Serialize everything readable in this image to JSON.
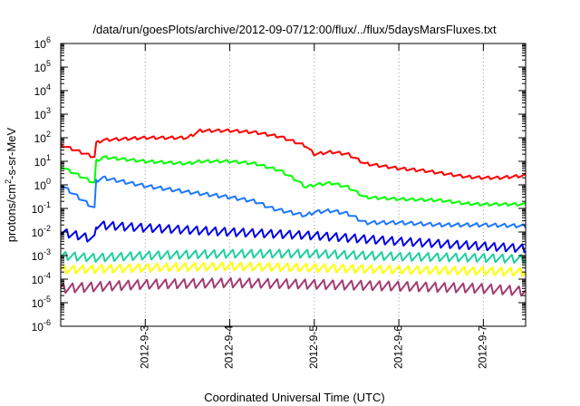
{
  "chart_data": {
    "type": "line",
    "title": "/data/run/goesPlots/archive/2012-09-07/12:00/flux/../flux/5daysMarsFluxes.txt",
    "xlabel": "Coordinated Universal Time (UTC)",
    "ylabel": {
      "prefix": "protons/cm",
      "sup": "2",
      "suffix": "-s-sr-MeV"
    },
    "yscale": "log",
    "ylim": [
      1e-06,
      1000000.0
    ],
    "xlim": [
      0,
      5.5
    ],
    "grid": true,
    "y_ticks": [
      {
        "value": -6,
        "base": "10",
        "exp": "-6"
      },
      {
        "value": -5,
        "base": "10",
        "exp": "-5"
      },
      {
        "value": -4,
        "base": "10",
        "exp": "-4"
      },
      {
        "value": -3,
        "base": "10",
        "exp": "-3"
      },
      {
        "value": -2,
        "base": "10",
        "exp": "-2"
      },
      {
        "value": -1,
        "base": "10",
        "exp": "-1"
      },
      {
        "value": 0,
        "base": "10",
        "exp": "0"
      },
      {
        "value": 1,
        "base": "10",
        "exp": "1"
      },
      {
        "value": 2,
        "base": "10",
        "exp": "2"
      },
      {
        "value": 3,
        "base": "10",
        "exp": "3"
      },
      {
        "value": 4,
        "base": "10",
        "exp": "4"
      },
      {
        "value": 5,
        "base": "10",
        "exp": "5"
      },
      {
        "value": 6,
        "base": "10",
        "exp": "6"
      }
    ],
    "x_ticks": [
      {
        "value": 1,
        "label": "2012-9-3"
      },
      {
        "value": 2,
        "label": "2012-9-4"
      },
      {
        "value": 3,
        "label": "2012-9-5"
      },
      {
        "value": 4,
        "label": "2012-9-6"
      },
      {
        "value": 5,
        "label": "2012-9-7"
      }
    ],
    "series": [
      {
        "color": "#ff0000",
        "sawtooth": true,
        "tooth_amp": 0.12,
        "points": [
          [
            0,
            50
          ],
          [
            0.4,
            15
          ],
          [
            0.42,
            60
          ],
          [
            0.5,
            80
          ],
          [
            1.0,
            100
          ],
          [
            1.5,
            100
          ],
          [
            1.65,
            200
          ],
          [
            2.0,
            200
          ],
          [
            2.3,
            170
          ],
          [
            2.6,
            110
          ],
          [
            2.9,
            45
          ],
          [
            3.0,
            20
          ],
          [
            3.2,
            25
          ],
          [
            3.4,
            20
          ],
          [
            3.6,
            8
          ],
          [
            4.0,
            5
          ],
          [
            4.3,
            4
          ],
          [
            4.8,
            2.2
          ],
          [
            5.0,
            2.0
          ],
          [
            5.2,
            2.0
          ],
          [
            5.5,
            2.5
          ]
        ]
      },
      {
        "color": "#00ff00",
        "sawtooth": true,
        "tooth_amp": 0.12,
        "points": [
          [
            0,
            6
          ],
          [
            0.4,
            1.2
          ],
          [
            0.42,
            10
          ],
          [
            0.5,
            15
          ],
          [
            1.0,
            10
          ],
          [
            1.5,
            8
          ],
          [
            1.65,
            10
          ],
          [
            2.0,
            10
          ],
          [
            2.3,
            8
          ],
          [
            2.6,
            4
          ],
          [
            2.8,
            1.5
          ],
          [
            2.9,
            0.8
          ],
          [
            3.0,
            1.0
          ],
          [
            3.2,
            1.2
          ],
          [
            3.4,
            0.8
          ],
          [
            3.6,
            0.3
          ],
          [
            4.0,
            0.25
          ],
          [
            4.5,
            0.22
          ],
          [
            4.8,
            0.16
          ],
          [
            5.0,
            0.15
          ],
          [
            5.5,
            0.15
          ]
        ]
      },
      {
        "color": "#1e77ff",
        "sawtooth": true,
        "tooth_amp": 0.15,
        "points": [
          [
            0,
            1.0
          ],
          [
            0.4,
            0.1
          ],
          [
            0.42,
            1.5
          ],
          [
            0.5,
            2.0
          ],
          [
            1.0,
            0.9
          ],
          [
            1.5,
            0.5
          ],
          [
            2.0,
            0.3
          ],
          [
            2.3,
            0.2
          ],
          [
            2.5,
            0.1
          ],
          [
            2.7,
            0.07
          ],
          [
            2.9,
            0.05
          ],
          [
            3.0,
            0.07
          ],
          [
            3.2,
            0.08
          ],
          [
            3.4,
            0.06
          ],
          [
            3.6,
            0.025
          ],
          [
            4.0,
            0.025
          ],
          [
            4.5,
            0.02
          ],
          [
            5.0,
            0.02
          ],
          [
            5.5,
            0.018
          ]
        ]
      },
      {
        "color": "#0000e6",
        "sawtooth": true,
        "tooth_amp": 0.35,
        "points": [
          [
            0,
            0.01
          ],
          [
            0.4,
            0.005
          ],
          [
            0.42,
            0.02
          ],
          [
            1.0,
            0.015
          ],
          [
            2.0,
            0.01
          ],
          [
            3.0,
            0.007
          ],
          [
            4.0,
            0.004
          ],
          [
            5.0,
            0.0025
          ],
          [
            5.5,
            0.002
          ]
        ]
      },
      {
        "color": "#1fcf9f",
        "sawtooth": true,
        "tooth_amp": 0.35,
        "points": [
          [
            0,
            0.001
          ],
          [
            0.4,
            0.0008
          ],
          [
            1.0,
            0.001
          ],
          [
            2.0,
            0.0012
          ],
          [
            3.0,
            0.0012
          ],
          [
            4.0,
            0.0009
          ],
          [
            5.0,
            0.0008
          ],
          [
            5.5,
            0.0007
          ]
        ]
      },
      {
        "color": "#ffff00",
        "sawtooth": true,
        "tooth_amp": 0.35,
        "points": [
          [
            0,
            0.00025
          ],
          [
            1.0,
            0.0003
          ],
          [
            2.0,
            0.00035
          ],
          [
            3.0,
            0.0003
          ],
          [
            4.0,
            0.00025
          ],
          [
            5.0,
            0.00022
          ],
          [
            5.5,
            0.0002
          ]
        ]
      },
      {
        "color": "#a23b72",
        "sawtooth": true,
        "tooth_amp": 0.4,
        "points": [
          [
            0,
            4e-05
          ],
          [
            1.0,
            6e-05
          ],
          [
            2.0,
            7e-05
          ],
          [
            3.0,
            6e-05
          ],
          [
            4.0,
            5e-05
          ],
          [
            5.0,
            4e-05
          ],
          [
            5.5,
            3e-05
          ]
        ]
      }
    ]
  }
}
